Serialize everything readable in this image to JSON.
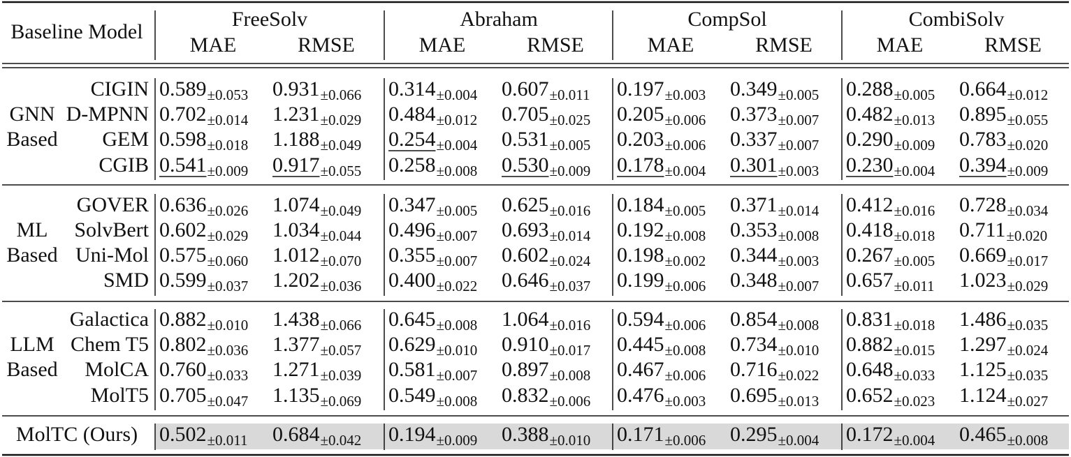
{
  "header": {
    "first": "Baseline Model",
    "datasets": [
      {
        "name": "FreeSolv",
        "metrics": [
          "MAE",
          "RMSE"
        ]
      },
      {
        "name": "Abraham",
        "metrics": [
          "MAE",
          "RMSE"
        ]
      },
      {
        "name": "CompSol",
        "metrics": [
          "MAE",
          "RMSE"
        ]
      },
      {
        "name": "CombiSolv",
        "metrics": [
          "MAE",
          "RMSE"
        ]
      }
    ]
  },
  "groups": [
    {
      "label": [
        "GNN",
        "Based"
      ],
      "rows": [
        {
          "model": "CIGIN",
          "cells": [
            {
              "value": "0.589",
              "std": "±0.053"
            },
            {
              "value": "0.931",
              "std": "±0.066"
            },
            {
              "value": "0.314",
              "std": "±0.004"
            },
            {
              "value": "0.607",
              "std": "±0.011"
            },
            {
              "value": "0.197",
              "std": "±0.003"
            },
            {
              "value": "0.349",
              "std": "±0.005"
            },
            {
              "value": "0.288",
              "std": "±0.005"
            },
            {
              "value": "0.664",
              "std": "±0.012"
            }
          ]
        },
        {
          "model": "D-MPNN",
          "cells": [
            {
              "value": "0.702",
              "std": "±0.014"
            },
            {
              "value": "1.231",
              "std": "±0.029"
            },
            {
              "value": "0.484",
              "std": "±0.012"
            },
            {
              "value": "0.705",
              "std": "±0.025"
            },
            {
              "value": "0.205",
              "std": "±0.006"
            },
            {
              "value": "0.373",
              "std": "±0.007"
            },
            {
              "value": "0.482",
              "std": "±0.013"
            },
            {
              "value": "0.895",
              "std": "±0.055"
            }
          ]
        },
        {
          "model": "GEM",
          "cells": [
            {
              "value": "0.598",
              "std": "±0.018"
            },
            {
              "value": "1.188",
              "std": "±0.049"
            },
            {
              "value": "0.254",
              "std": "±0.004",
              "underline": true
            },
            {
              "value": "0.531",
              "std": "±0.005"
            },
            {
              "value": "0.203",
              "std": "±0.006"
            },
            {
              "value": "0.337",
              "std": "±0.007"
            },
            {
              "value": "0.290",
              "std": "±0.009"
            },
            {
              "value": "0.783",
              "std": "±0.020"
            }
          ]
        },
        {
          "model": "CGIB",
          "cells": [
            {
              "value": "0.541",
              "std": "±0.009",
              "underline": true
            },
            {
              "value": "0.917",
              "std": "±0.055",
              "underline": true
            },
            {
              "value": "0.258",
              "std": "±0.008"
            },
            {
              "value": "0.530",
              "std": "±0.009",
              "underline": true
            },
            {
              "value": "0.178",
              "std": "±0.004",
              "underline": true
            },
            {
              "value": "0.301",
              "std": "±0.003",
              "underline": true
            },
            {
              "value": "0.230",
              "std": "±0.004",
              "underline": true
            },
            {
              "value": "0.394",
              "std": "±0.009",
              "underline": true
            }
          ]
        }
      ]
    },
    {
      "label": [
        "ML",
        "Based"
      ],
      "rows": [
        {
          "model": "GOVER",
          "cells": [
            {
              "value": "0.636",
              "std": "±0.026"
            },
            {
              "value": "1.074",
              "std": "±0.049"
            },
            {
              "value": "0.347",
              "std": "±0.005"
            },
            {
              "value": "0.625",
              "std": "±0.016"
            },
            {
              "value": "0.184",
              "std": "±0.005"
            },
            {
              "value": "0.371",
              "std": "±0.014"
            },
            {
              "value": "0.412",
              "std": "±0.016"
            },
            {
              "value": "0.728",
              "std": "±0.034"
            }
          ]
        },
        {
          "model": "SolvBert",
          "cells": [
            {
              "value": "0.602",
              "std": "±0.029"
            },
            {
              "value": "1.034",
              "std": "±0.044"
            },
            {
              "value": "0.496",
              "std": "±0.007"
            },
            {
              "value": "0.693",
              "std": "±0.014"
            },
            {
              "value": "0.192",
              "std": "±0.008"
            },
            {
              "value": "0.353",
              "std": "±0.008"
            },
            {
              "value": "0.418",
              "std": "±0.018"
            },
            {
              "value": "0.711",
              "std": "±0.020"
            }
          ]
        },
        {
          "model": "Uni-Mol",
          "cells": [
            {
              "value": "0.575",
              "std": "±0.060"
            },
            {
              "value": "1.012",
              "std": "±0.070"
            },
            {
              "value": "0.355",
              "std": "±0.007"
            },
            {
              "value": "0.602",
              "std": "±0.024"
            },
            {
              "value": "0.198",
              "std": "±0.002"
            },
            {
              "value": "0.344",
              "std": "±0.003"
            },
            {
              "value": "0.267",
              "std": "±0.005"
            },
            {
              "value": "0.669",
              "std": "±0.017"
            }
          ]
        },
        {
          "model": "SMD",
          "cells": [
            {
              "value": "0.599",
              "std": "±0.037"
            },
            {
              "value": "1.202",
              "std": "±0.036"
            },
            {
              "value": "0.400",
              "std": "±0.022"
            },
            {
              "value": "0.646",
              "std": "±0.037"
            },
            {
              "value": "0.199",
              "std": "±0.006"
            },
            {
              "value": "0.348",
              "std": "±0.007"
            },
            {
              "value": "0.657",
              "std": "±0.011"
            },
            {
              "value": "1.023",
              "std": "±0.029"
            }
          ]
        }
      ]
    },
    {
      "label": [
        "LLM",
        "Based"
      ],
      "rows": [
        {
          "model": "Galactica",
          "cells": [
            {
              "value": "0.882",
              "std": "±0.010"
            },
            {
              "value": "1.438",
              "std": "±0.066"
            },
            {
              "value": "0.645",
              "std": "±0.008"
            },
            {
              "value": "1.064",
              "std": "±0.016"
            },
            {
              "value": "0.594",
              "std": "±0.006"
            },
            {
              "value": "0.854",
              "std": "±0.008"
            },
            {
              "value": "0.831",
              "std": "±0.018"
            },
            {
              "value": "1.486",
              "std": "±0.035"
            }
          ]
        },
        {
          "model": "Chem T5",
          "cells": [
            {
              "value": "0.802",
              "std": "±0.036"
            },
            {
              "value": "1.377",
              "std": "±0.057"
            },
            {
              "value": "0.629",
              "std": "±0.010"
            },
            {
              "value": "0.910",
              "std": "±0.017"
            },
            {
              "value": "0.445",
              "std": "±0.008"
            },
            {
              "value": "0.734",
              "std": "±0.010"
            },
            {
              "value": "0.882",
              "std": "±0.015"
            },
            {
              "value": "1.297",
              "std": "±0.024"
            }
          ]
        },
        {
          "model": "MolCA",
          "cells": [
            {
              "value": "0.760",
              "std": "±0.033"
            },
            {
              "value": "1.271",
              "std": "±0.039"
            },
            {
              "value": "0.581",
              "std": "±0.007"
            },
            {
              "value": "0.897",
              "std": "±0.008"
            },
            {
              "value": "0.467",
              "std": "±0.006"
            },
            {
              "value": "0.716",
              "std": "±0.022"
            },
            {
              "value": "0.648",
              "std": "±0.033"
            },
            {
              "value": "1.125",
              "std": "±0.035"
            }
          ]
        },
        {
          "model": "MolT5",
          "cells": [
            {
              "value": "0.705",
              "std": "±0.047"
            },
            {
              "value": "1.135",
              "std": "±0.069"
            },
            {
              "value": "0.549",
              "std": "±0.008"
            },
            {
              "value": "0.832",
              "std": "±0.006"
            },
            {
              "value": "0.476",
              "std": "±0.003"
            },
            {
              "value": "0.695",
              "std": "±0.013"
            },
            {
              "value": "0.652",
              "std": "±0.023"
            },
            {
              "value": "1.124",
              "std": "±0.027"
            }
          ]
        }
      ]
    }
  ],
  "ours": {
    "model": "MolTC (Ours)",
    "cells": [
      {
        "value": "0.502",
        "std": "±0.011"
      },
      {
        "value": "0.684",
        "std": "±0.042"
      },
      {
        "value": "0.194",
        "std": "±0.009"
      },
      {
        "value": "0.388",
        "std": "±0.010"
      },
      {
        "value": "0.171",
        "std": "±0.006"
      },
      {
        "value": "0.295",
        "std": "±0.004"
      },
      {
        "value": "0.172",
        "std": "±0.004"
      },
      {
        "value": "0.465",
        "std": "±0.008"
      }
    ]
  }
}
